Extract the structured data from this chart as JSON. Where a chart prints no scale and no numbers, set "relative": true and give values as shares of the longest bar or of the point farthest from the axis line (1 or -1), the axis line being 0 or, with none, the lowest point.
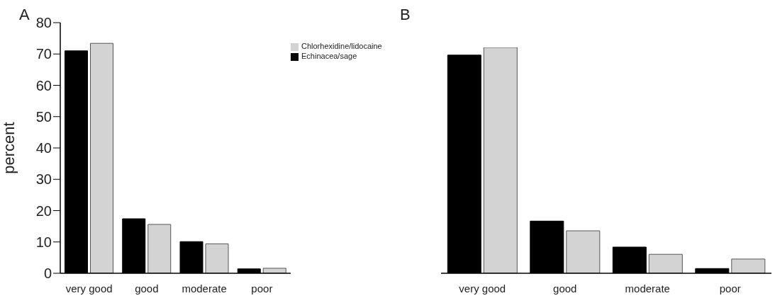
{
  "chart_data": [
    {
      "type": "bar",
      "title": "A",
      "ylabel": "percent",
      "categories": [
        "very good",
        "good",
        "moderate",
        "poor"
      ],
      "ylim": [
        0,
        80
      ],
      "yticks": [
        0,
        10,
        20,
        30,
        40,
        50,
        60,
        70,
        80
      ],
      "legend": "top right",
      "series": [
        {
          "name": "Echinacea/sage",
          "color": "#000000",
          "values": [
            71.0,
            17.4,
            10.1,
            1.4
          ]
        },
        {
          "name": "Chlorhexidine/lidocaine",
          "color": "#d3d3d3",
          "values": [
            73.4,
            15.6,
            9.4,
            1.6
          ]
        }
      ]
    },
    {
      "type": "bar",
      "title": "B",
      "relative": true,
      "categories": [
        "very good",
        "good",
        "moderate",
        "poor"
      ],
      "series": [
        {
          "color": "#000000",
          "values": [
            0.966,
            0.231,
            0.116,
            0.021
          ]
        },
        {
          "color": "#d3d3d3",
          "values": [
            1,
            0.188,
            0.084,
            0.063
          ]
        }
      ]
    }
  ]
}
